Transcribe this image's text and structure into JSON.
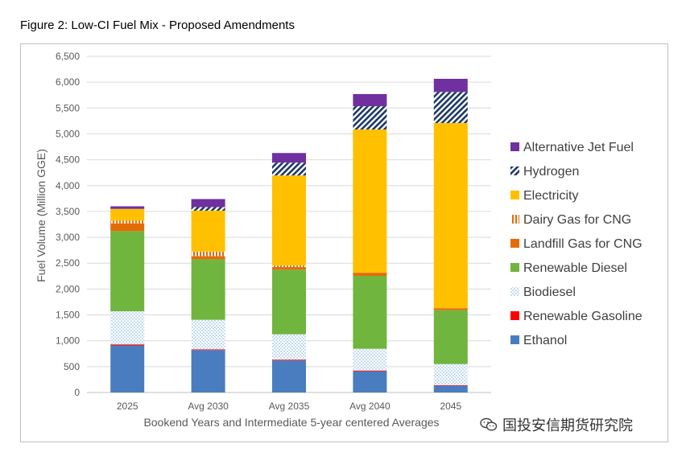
{
  "figure_title": "Figure 2: Low-CI Fuel Mix - Proposed Amendments",
  "watermark": "国投安信期货研究院",
  "chart_data": {
    "type": "bar",
    "stacked": true,
    "title": "Figure 2: Low-CI Fuel Mix - Proposed Amendments",
    "xlabel": "Bookend Years and Intermediate 5-year centered Averages",
    "ylabel": "Fuel Volume (Million GGE)",
    "ylim": [
      0,
      6500
    ],
    "yticks": [
      "0",
      "500",
      "1,000",
      "1,500",
      "2,000",
      "2,500",
      "3,000",
      "3,500",
      "4,000",
      "4,500",
      "5,000",
      "5,500",
      "6,000",
      "6,500"
    ],
    "grid": true,
    "legend_position": "right",
    "categories": [
      "2025",
      "Avg 2030",
      "Avg 2035",
      "Avg 2040",
      "2045"
    ],
    "series": [
      {
        "name": "Ethanol",
        "color": "#4a7dbf",
        "pattern": "solid",
        "values": [
          910,
          820,
          620,
          410,
          130
        ]
      },
      {
        "name": "Renewable Gasoline",
        "color": "#ff0000",
        "pattern": "solid",
        "values": [
          20,
          15,
          15,
          15,
          10
        ]
      },
      {
        "name": "Biodiesel",
        "color": "#c5d9f1",
        "pattern": "dots",
        "values": [
          640,
          570,
          490,
          420,
          410
        ]
      },
      {
        "name": "Renewable Diesel",
        "color": "#70b53e",
        "pattern": "solid",
        "values": [
          1550,
          1170,
          1250,
          1410,
          1040
        ]
      },
      {
        "name": "Landfill Gas for CNG",
        "color": "#e36c09",
        "pattern": "solid",
        "values": [
          150,
          60,
          50,
          60,
          40
        ]
      },
      {
        "name": "Dairy Gas for CNG",
        "color": "#e36c09",
        "pattern": "vstripes",
        "values": [
          50,
          90,
          30,
          0,
          0
        ]
      },
      {
        "name": "Electricity",
        "color": "#ffc000",
        "pattern": "solid",
        "values": [
          230,
          790,
          1740,
          2770,
          3580
        ]
      },
      {
        "name": "Hydrogen",
        "color": "#1f3864",
        "pattern": "diagonal",
        "values": [
          0,
          70,
          250,
          450,
          600
        ]
      },
      {
        "name": "Alternative Jet Fuel",
        "color": "#7030a0",
        "pattern": "solid",
        "values": [
          50,
          155,
          185,
          235,
          255
        ]
      }
    ],
    "legend_order": [
      "Alternative Jet Fuel",
      "Hydrogen",
      "Electricity",
      "Dairy Gas for CNG",
      "Landfill Gas for CNG",
      "Renewable Diesel",
      "Biodiesel",
      "Renewable Gasoline",
      "Ethanol"
    ]
  }
}
